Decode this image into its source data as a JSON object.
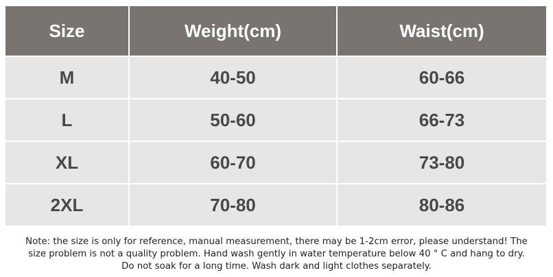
{
  "table": {
    "header": [
      "Size",
      "Weight(cm)",
      "Waist(cm)"
    ],
    "rows": [
      [
        "M",
        "40-50",
        "60-66"
      ],
      [
        "L",
        "50-60",
        "66-73"
      ],
      [
        "XL",
        "60-70",
        "73-80"
      ],
      [
        "2XL",
        "70-80",
        "80-86"
      ]
    ]
  },
  "note": [
    "Note: the size is only for reference, manual measurement, there may be 1-2cm error, please understand! The",
    "size problem is not a quality problem. Hand wash gently in water temperature below 40 ° C and hang to dry.",
    "Do not soak for a long time. Wash dark and light clothes separately."
  ]
}
